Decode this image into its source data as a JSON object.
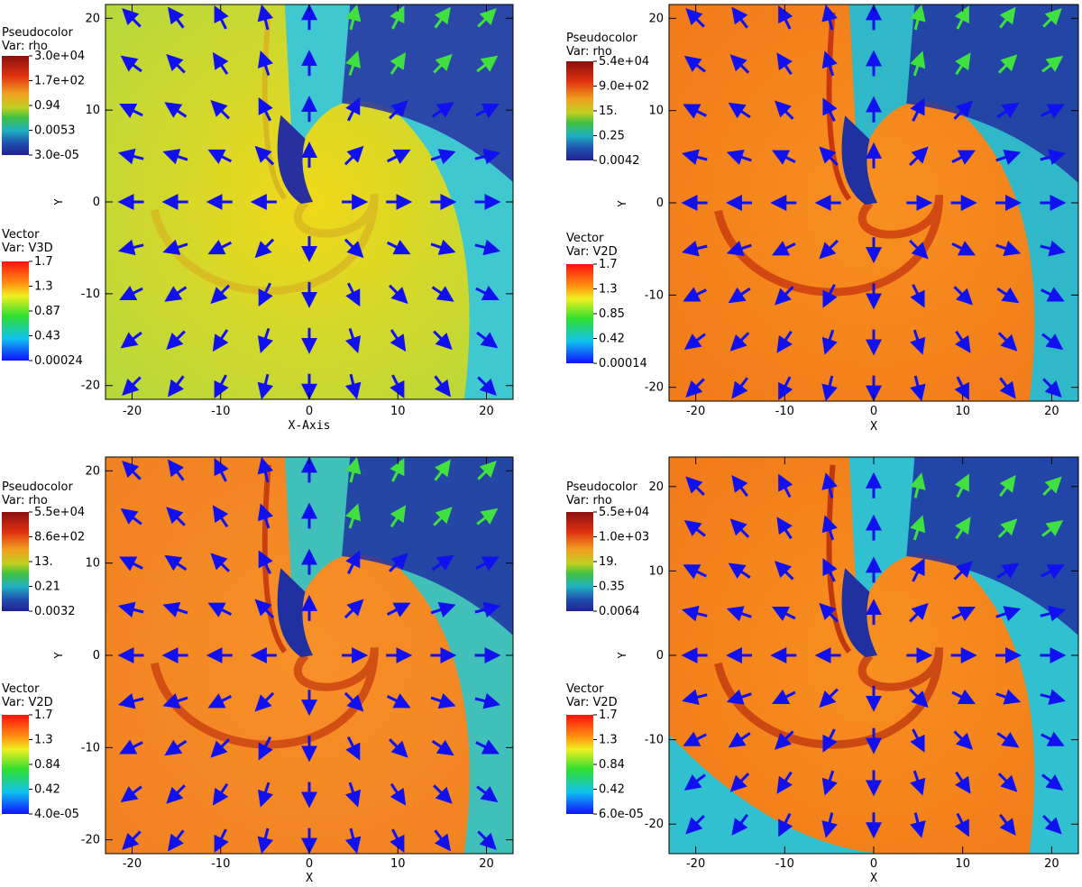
{
  "chart_data": [
    {
      "type": "heatmap",
      "xlabel": "X-Axis",
      "ylabel": "Y",
      "xlim": [
        -23,
        23
      ],
      "ylim": [
        -21.5,
        21.5
      ],
      "xticks": [
        "-20",
        "-10",
        "0",
        "10",
        "20"
      ],
      "yticks": [
        "20",
        "10",
        "0",
        "-10",
        "-20"
      ],
      "pseudocolor": {
        "title": "Pseudocolor",
        "var": "Var: rho",
        "labels": [
          "3.0e+04",
          "1.7e+02",
          "0.94",
          "0.0053",
          "3.0e-05"
        ]
      },
      "vector": {
        "title": "Vector",
        "var": "Var: V3D",
        "labels": [
          "1.7",
          "1.3",
          "0.87",
          "0.43",
          "0.00024"
        ]
      },
      "colors": {
        "far": "#b0d840",
        "near": "#f0d818",
        "arm": "#d8b820",
        "outer": "#40c8d0",
        "cavity": "#2830a0"
      }
    },
    {
      "type": "heatmap",
      "xlabel": "X",
      "ylabel": "Y",
      "xlim": [
        -23,
        23
      ],
      "ylim": [
        -21.5,
        21.5
      ],
      "xticks": [
        "-20",
        "-10",
        "0",
        "10",
        "20"
      ],
      "yticks": [
        "20",
        "10",
        "0",
        "-10",
        "-20"
      ],
      "pseudocolor": {
        "title": "Pseudocolor",
        "var": "Var: rho",
        "labels": [
          "5.4e+04",
          "9.0e+02",
          "15.",
          "0.25",
          "0.0042"
        ]
      },
      "vector": {
        "title": "Vector",
        "var": "Var: V2D",
        "labels": [
          "1.7",
          "1.3",
          "0.85",
          "0.42",
          "0.00014"
        ]
      },
      "colors": {
        "far": "#f07818",
        "near": "#f89020",
        "arm": "#c83810",
        "outer": "#30b8c8",
        "cavity": "#2030a0"
      }
    },
    {
      "type": "heatmap",
      "xlabel": "X",
      "ylabel": "Y",
      "xlim": [
        -23,
        23
      ],
      "ylim": [
        -21.5,
        21.5
      ],
      "xticks": [
        "-20",
        "-10",
        "0",
        "10",
        "20"
      ],
      "yticks": [
        "20",
        "10",
        "0",
        "-10",
        "-20"
      ],
      "pseudocolor": {
        "title": "Pseudocolor",
        "var": "Var: rho",
        "labels": [
          "5.5e+04",
          "8.6e+02",
          "13.",
          "0.21",
          "0.0032"
        ]
      },
      "vector": {
        "title": "Vector",
        "var": "Var: V2D",
        "labels": [
          "1.7",
          "1.3",
          "0.84",
          "0.42",
          "4.0e-05"
        ]
      },
      "colors": {
        "far": "#f08020",
        "near": "#f89028",
        "arm": "#c84010",
        "outer": "#40c0b8",
        "cavity": "#2030a0"
      }
    },
    {
      "type": "heatmap",
      "xlabel": "X",
      "ylabel": "Y",
      "xlim": [
        -23,
        23
      ],
      "ylim": [
        -23.5,
        23.5
      ],
      "xticks": [
        "-20",
        "-10",
        "0",
        "10",
        "20"
      ],
      "yticks": [
        "20",
        "10",
        "0",
        "-10",
        "-20"
      ],
      "pseudocolor": {
        "title": "Pseudocolor",
        "var": "Var: rho",
        "labels": [
          "5.5e+04",
          "1.0e+03",
          "19.",
          "0.35",
          "0.0064"
        ]
      },
      "vector": {
        "title": "Vector",
        "var": "Var: V2D",
        "labels": [
          "1.7",
          "1.3",
          "0.84",
          "0.42",
          "6.0e-05"
        ]
      },
      "colors": {
        "far": "#f07818",
        "near": "#f89020",
        "arm": "#c03810",
        "outer": "#30c0d0",
        "cavity": "#2030a0"
      }
    }
  ]
}
